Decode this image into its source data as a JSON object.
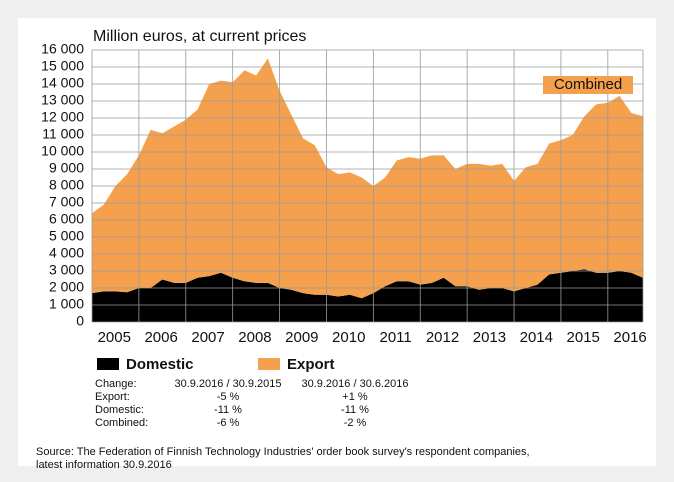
{
  "chart_data": {
    "type": "stacked_area",
    "title": "Million euros, at current prices",
    "annotation": "Combined",
    "categories": [
      "2005",
      null,
      null,
      null,
      "2006",
      null,
      null,
      null,
      "2007",
      null,
      null,
      null,
      "2008",
      null,
      null,
      null,
      "2009",
      null,
      null,
      null,
      "2010",
      null,
      null,
      null,
      "2011",
      null,
      null,
      null,
      "2012",
      null,
      null,
      null,
      "2013",
      null,
      null,
      null,
      "2014",
      null,
      null,
      null,
      "2015",
      null,
      null,
      null,
      "2016",
      null,
      null,
      null
    ],
    "series": [
      {
        "name": "Domestic",
        "color": "#000000",
        "values": [
          1700,
          1800,
          1800,
          1750,
          2000,
          2000,
          2500,
          2300,
          2300,
          2600,
          2700,
          2900,
          2600,
          2400,
          2300,
          2300,
          2000,
          1900,
          1700,
          1600,
          1600,
          1500,
          1600,
          1400,
          1700,
          2100,
          2400,
          2400,
          2200,
          2300,
          2600,
          2100,
          2100,
          1900,
          2000,
          2000,
          1800,
          2000,
          2200,
          2800,
          2900,
          3000,
          3100,
          2900,
          2900,
          3000,
          2900,
          2600
        ]
      },
      {
        "name": "Export",
        "color": "#f5a04c",
        "values": [
          4700,
          5100,
          6200,
          6950,
          7800,
          9300,
          8600,
          9200,
          9600,
          9900,
          11300,
          11300,
          11500,
          12400,
          12200,
          13200,
          11600,
          10300,
          9100,
          8800,
          7500,
          7200,
          7200,
          7100,
          6300,
          6400,
          7100,
          7300,
          7400,
          7500,
          7200,
          6900,
          7200,
          7400,
          7200,
          7300,
          6500,
          7100,
          7100,
          7700,
          7800,
          8000,
          9000,
          9900,
          10000,
          10300,
          9400,
          9500
        ]
      }
    ],
    "ylim": [
      0,
      16000
    ],
    "yticks": [
      0,
      {
        "value": 1000,
        "label": "1 000"
      },
      {
        "value": 2000,
        "label": "2 000"
      },
      {
        "value": 3000,
        "label": "3 000"
      },
      {
        "value": 4000,
        "label": "4 000"
      },
      {
        "value": 5000,
        "label": "5 000"
      },
      {
        "value": 6000,
        "label": "6 000"
      },
      {
        "value": 7000,
        "label": "7 000"
      },
      {
        "value": 8000,
        "label": "8 000"
      },
      {
        "value": 9000,
        "label": "9 000"
      },
      {
        "value": 10000,
        "label": "10 000"
      },
      {
        "value": 11000,
        "label": "11 000"
      },
      {
        "value": 12000,
        "label": "12 000"
      },
      {
        "value": 13000,
        "label": "13 000"
      },
      {
        "value": 14000,
        "label": "14 000"
      },
      {
        "value": 15000,
        "label": "15 000"
      },
      {
        "value": 16000,
        "label": "16 000"
      }
    ],
    "grid": true
  },
  "table": {
    "rows": [
      [
        "Change:",
        "30.9.2016 / 30.9.2015",
        "30.9.2016 / 30.6.2016"
      ],
      [
        "Export:",
        "-5 %",
        "+1 %"
      ],
      [
        "Domestic:",
        "-11 %",
        "-11 %"
      ],
      [
        "Combined:",
        "-6 %",
        "-2 %"
      ]
    ]
  },
  "source": [
    "Source: The Federation of Finnish Technology Industries' order book survey's respondent companies,",
    "latest information 30.9.2016"
  ]
}
